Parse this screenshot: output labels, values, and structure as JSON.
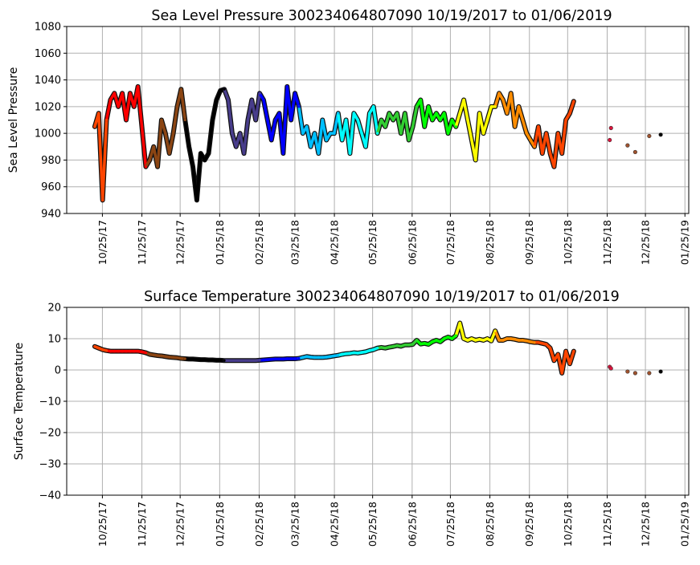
{
  "chart_data": [
    {
      "type": "scatter",
      "title": "Sea Level Pressure 300234064807090  10/19/2017 to 01/06/2019",
      "xlabel": "",
      "ylabel": "Sea Level Pressure",
      "ylim": [
        940,
        1080
      ],
      "yticks": [
        940,
        960,
        980,
        1000,
        1020,
        1040,
        1060,
        1080
      ],
      "x_units": "days since 10/19/2017",
      "xlim": [
        -22,
        466
      ],
      "grid": true,
      "series_start_day": 0,
      "series_step_days": 3.08,
      "values": [
        1005,
        1015,
        950,
        1010,
        1025,
        1030,
        1020,
        1030,
        1010,
        1030,
        1020,
        1035,
        1005,
        975,
        980,
        990,
        975,
        1010,
        1000,
        985,
        1000,
        1020,
        1033,
        1010,
        990,
        975,
        950,
        985,
        980,
        985,
        1010,
        1025,
        1032,
        1033,
        1025,
        1000,
        990,
        1000,
        985,
        1010,
        1025,
        1010,
        1030,
        1025,
        1010,
        995,
        1010,
        1015,
        985,
        1035,
        1010,
        1030,
        1020,
        1000,
        1005,
        990,
        1000,
        985,
        1010,
        995,
        1000,
        1000,
        1015,
        995,
        1010,
        985,
        1015,
        1010,
        1000,
        990,
        1015,
        1020,
        1000,
        1010,
        1005,
        1015,
        1010,
        1015,
        1000,
        1015,
        995,
        1005,
        1020,
        1025,
        1005,
        1020,
        1010,
        1015,
        1010,
        1015,
        1000,
        1010,
        1005,
        1015,
        1025,
        1010,
        995,
        980,
        1015,
        1000,
        1010,
        1020,
        1020,
        1030,
        1025,
        1015,
        1030,
        1005,
        1020,
        1010,
        1000,
        995,
        990,
        1005,
        985,
        1000,
        985,
        975,
        1000,
        985,
        1010,
        1015,
        1024
      ],
      "sparse_points": [
        {
          "day": 404,
          "value": 995
        },
        {
          "day": 405,
          "value": 1004
        },
        {
          "day": 418,
          "value": 991
        },
        {
          "day": 424,
          "value": 986
        },
        {
          "day": 435,
          "value": 998
        },
        {
          "day": 444,
          "value": 999
        }
      ]
    },
    {
      "type": "scatter",
      "title": "Surface Temperature 300234064807090  10/19/2017 to 01/06/2019",
      "xlabel": "",
      "ylabel": "Surface Temperature",
      "ylim": [
        -40,
        20
      ],
      "yticks": [
        -40,
        -30,
        -20,
        -10,
        0,
        10,
        20
      ],
      "x_units": "days since 10/19/2017",
      "xlim": [
        -22,
        466
      ],
      "grid": true,
      "series_start_day": 0,
      "series_step_days": 3.08,
      "values": [
        7.5,
        7,
        6.5,
        6.2,
        6,
        6,
        6,
        6,
        6,
        6,
        6,
        6,
        5.8,
        5.5,
        5,
        4.8,
        4.6,
        4.5,
        4.3,
        4.1,
        4,
        3.9,
        3.7,
        3.6,
        3.5,
        3.5,
        3.4,
        3.3,
        3.3,
        3.2,
        3.2,
        3.1,
        3.1,
        3,
        3,
        3,
        3,
        3,
        3,
        3,
        3,
        3,
        3.1,
        3.2,
        3.3,
        3.4,
        3.5,
        3.5,
        3.5,
        3.6,
        3.6,
        3.6,
        3.7,
        4,
        4.3,
        4.1,
        4,
        4,
        4,
        4.1,
        4.3,
        4.5,
        4.7,
        5,
        5.2,
        5.3,
        5.5,
        5.4,
        5.6,
        5.8,
        6.2,
        6.5,
        7,
        7.2,
        7,
        7.3,
        7.5,
        7.8,
        7.6,
        8,
        8,
        8.2,
        9.5,
        8.3,
        8.5,
        8.2,
        9,
        9.5,
        9,
        10,
        10.5,
        10,
        11,
        15,
        10,
        9.5,
        10,
        9.5,
        9.8,
        9.5,
        10,
        9.3,
        12.5,
        9.5,
        9.5,
        10,
        10,
        9.8,
        9.5,
        9.5,
        9.3,
        9,
        8.8,
        8.8,
        8.5,
        8.2,
        7,
        3,
        5,
        -1,
        6,
        2,
        6
      ],
      "sparse_points": [
        {
          "day": 404,
          "value": 1
        },
        {
          "day": 405,
          "value": 0.5
        },
        {
          "day": 418,
          "value": -0.5
        },
        {
          "day": 424,
          "value": -1
        },
        {
          "day": 435,
          "value": -1
        },
        {
          "day": 444,
          "value": -0.5
        }
      ]
    }
  ],
  "x_ticks": [
    {
      "day": 6,
      "label": "10/25/17"
    },
    {
      "day": 37,
      "label": "11/25/17"
    },
    {
      "day": 67,
      "label": "12/25/17"
    },
    {
      "day": 98,
      "label": "01/25/18"
    },
    {
      "day": 129,
      "label": "02/25/18"
    },
    {
      "day": 157,
      "label": "03/25/18"
    },
    {
      "day": 188,
      "label": "04/25/18"
    },
    {
      "day": 218,
      "label": "05/25/18"
    },
    {
      "day": 249,
      "label": "06/25/18"
    },
    {
      "day": 279,
      "label": "07/25/18"
    },
    {
      "day": 310,
      "label": "08/25/18"
    },
    {
      "day": 341,
      "label": "09/25/18"
    },
    {
      "day": 371,
      "label": "10/25/18"
    },
    {
      "day": 402,
      "label": "11/25/18"
    },
    {
      "day": 432,
      "label": "12/25/18"
    },
    {
      "day": 463,
      "label": "01/25/19"
    }
  ],
  "month_colors": [
    {
      "from_day": 0,
      "color": "#ff4500"
    },
    {
      "from_day": 11,
      "color": "#ff0000"
    },
    {
      "from_day": 41,
      "color": "#8b4513"
    },
    {
      "from_day": 72,
      "color": "#000000"
    },
    {
      "from_day": 103,
      "color": "#483d8b"
    },
    {
      "from_day": 131,
      "color": "#0000ff"
    },
    {
      "from_day": 162,
      "color": "#00bfff"
    },
    {
      "from_day": 192,
      "color": "#00ffff"
    },
    {
      "from_day": 223,
      "color": "#32cd32"
    },
    {
      "from_day": 253,
      "color": "#00ff00"
    },
    {
      "from_day": 284,
      "color": "#ffff00"
    },
    {
      "from_day": 315,
      "color": "#ff8c00"
    },
    {
      "from_day": 345,
      "color": "#ff4500"
    },
    {
      "from_day": 400,
      "color": "#dc143c"
    },
    {
      "from_day": 410,
      "color": "#a0522d"
    },
    {
      "from_day": 440,
      "color": "#000000"
    }
  ]
}
